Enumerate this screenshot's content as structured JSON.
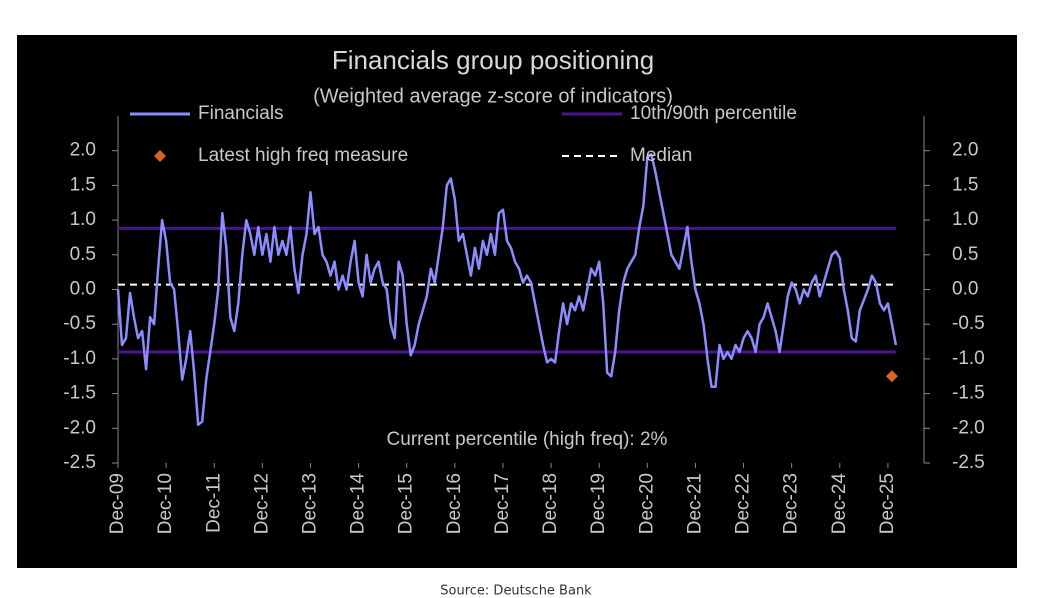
{
  "chart_data": {
    "type": "line",
    "title": "Financials group positioning",
    "subtitle": "(Weighted average z-score of indicators)",
    "annotation": "Current percentile (high freq): 2%",
    "source": "Source: Deutsche Bank",
    "xlim": [
      "2009-12",
      "2026-09"
    ],
    "xticks": [
      {
        "value": "2009-12",
        "label": "Dec-09"
      },
      {
        "value": "2010-12",
        "label": "Dec-10"
      },
      {
        "value": "2011-12",
        "label": "Dec-11"
      },
      {
        "value": "2012-12",
        "label": "Dec-12"
      },
      {
        "value": "2013-12",
        "label": "Dec-13"
      },
      {
        "value": "2014-12",
        "label": "Dec-14"
      },
      {
        "value": "2015-12",
        "label": "Dec-15"
      },
      {
        "value": "2016-12",
        "label": "Dec-16"
      },
      {
        "value": "2017-12",
        "label": "Dec-17"
      },
      {
        "value": "2018-12",
        "label": "Dec-18"
      },
      {
        "value": "2019-12",
        "label": "Dec-19"
      },
      {
        "value": "2020-12",
        "label": "Dec-20"
      },
      {
        "value": "2021-12",
        "label": "Dec-21"
      },
      {
        "value": "2022-12",
        "label": "Dec-22"
      },
      {
        "value": "2023-12",
        "label": "Dec-23"
      },
      {
        "value": "2024-12",
        "label": "Dec-24"
      },
      {
        "value": "2025-12",
        "label": "Dec-25"
      }
    ],
    "ylim": [
      -2.5,
      2.5
    ],
    "yticks": [
      -2.5,
      {
        "value": -2,
        "label": "-2.0"
      },
      -1.5,
      {
        "value": -1,
        "label": "-1.0"
      },
      -0.5,
      {
        "value": 0,
        "label": "0.0"
      },
      0.5,
      {
        "value": 1,
        "label": "1.0"
      },
      1.5,
      {
        "value": 2,
        "label": "2.0"
      }
    ],
    "y2lim": [
      -2.5,
      2.5
    ],
    "y2ticks": [
      -2.5,
      {
        "value": -2,
        "label": "-2.0"
      },
      -1.5,
      {
        "value": -1,
        "label": "-1.0"
      },
      -0.5,
      {
        "value": 0,
        "label": "0.0"
      },
      0.5,
      {
        "value": 1,
        "label": "1.0"
      },
      1.5,
      {
        "value": 2,
        "label": "2.0"
      }
    ],
    "series": [
      {
        "name": "Financials",
        "color": "#8c8cff",
        "x": [
          "2009-12",
          "2010-01",
          "2010-02",
          "2010-03",
          "2010-04",
          "2010-05",
          "2010-06",
          "2010-07",
          "2010-08",
          "2010-09",
          "2010-10",
          "2010-11",
          "2010-12",
          "2011-01",
          "2011-02",
          "2011-03",
          "2011-04",
          "2011-05",
          "2011-06",
          "2011-07",
          "2011-08",
          "2011-09",
          "2011-10",
          "2011-11",
          "2011-12",
          "2012-01",
          "2012-02",
          "2012-03",
          "2012-04",
          "2012-05",
          "2012-06",
          "2012-07",
          "2012-08",
          "2012-09",
          "2012-10",
          "2012-11",
          "2012-12",
          "2013-01",
          "2013-02",
          "2013-03",
          "2013-04",
          "2013-05",
          "2013-06",
          "2013-07",
          "2013-08",
          "2013-09",
          "2013-10",
          "2013-11",
          "2013-12",
          "2014-01",
          "2014-02",
          "2014-03",
          "2014-04",
          "2014-05",
          "2014-06",
          "2014-07",
          "2014-08",
          "2014-09",
          "2014-10",
          "2014-11",
          "2014-12",
          "2015-01",
          "2015-02",
          "2015-03",
          "2015-04",
          "2015-05",
          "2015-06",
          "2015-07",
          "2015-08",
          "2015-09",
          "2015-10",
          "2015-11",
          "2015-12",
          "2016-01",
          "2016-02",
          "2016-03",
          "2016-04",
          "2016-05",
          "2016-06",
          "2016-07",
          "2016-08",
          "2016-09",
          "2016-10",
          "2016-11",
          "2016-12",
          "2017-01",
          "2017-02",
          "2017-03",
          "2017-04",
          "2017-05",
          "2017-06",
          "2017-07",
          "2017-08",
          "2017-09",
          "2017-10",
          "2017-11",
          "2017-12",
          "2018-01",
          "2018-02",
          "2018-03",
          "2018-04",
          "2018-05",
          "2018-06",
          "2018-07",
          "2018-08",
          "2018-09",
          "2018-10",
          "2018-11",
          "2018-12",
          "2019-01",
          "2019-02",
          "2019-03",
          "2019-04",
          "2019-05",
          "2019-06",
          "2019-07",
          "2019-08",
          "2019-09",
          "2019-10",
          "2019-11",
          "2019-12",
          "2020-01",
          "2020-02",
          "2020-03",
          "2020-04",
          "2020-05",
          "2020-06",
          "2020-07",
          "2020-08",
          "2020-09",
          "2020-10",
          "2020-11",
          "2020-12",
          "2021-01",
          "2021-02",
          "2021-03",
          "2021-04",
          "2021-05",
          "2021-06",
          "2021-07",
          "2021-08",
          "2021-09",
          "2021-10",
          "2021-11",
          "2021-12",
          "2022-01",
          "2022-02",
          "2022-03",
          "2022-04",
          "2022-05",
          "2022-06",
          "2022-07",
          "2022-08",
          "2022-09",
          "2022-10",
          "2022-11",
          "2022-12",
          "2023-01",
          "2023-02",
          "2023-03",
          "2023-04",
          "2023-05",
          "2023-06",
          "2023-07",
          "2023-08",
          "2023-09",
          "2023-10",
          "2023-11",
          "2023-12",
          "2024-01",
          "2024-02",
          "2024-03",
          "2024-04",
          "2024-05",
          "2024-06",
          "2024-07",
          "2024-08",
          "2024-09",
          "2024-10",
          "2024-11",
          "2024-12",
          "2025-01",
          "2025-02",
          "2025-03",
          "2025-04",
          "2025-05",
          "2025-06",
          "2025-07",
          "2025-08",
          "2025-09",
          "2025-10",
          "2025-11",
          "2025-12",
          "2026-01",
          "2026-02"
        ],
        "values": [
          0.0,
          -0.8,
          -0.7,
          -0.05,
          -0.4,
          -0.7,
          -0.6,
          -1.15,
          -0.4,
          -0.5,
          0.3,
          1.0,
          0.7,
          0.1,
          0.0,
          -0.6,
          -1.3,
          -1.0,
          -0.6,
          -1.2,
          -1.95,
          -1.9,
          -1.3,
          -0.9,
          -0.5,
          0.0,
          1.1,
          0.6,
          -0.4,
          -0.6,
          -0.2,
          0.5,
          1.0,
          0.8,
          0.5,
          0.9,
          0.5,
          0.8,
          0.4,
          0.9,
          0.5,
          0.7,
          0.5,
          0.9,
          0.3,
          -0.05,
          0.5,
          0.8,
          1.4,
          0.8,
          0.9,
          0.5,
          0.4,
          0.2,
          0.4,
          0.0,
          0.2,
          0.0,
          0.4,
          0.7,
          0.1,
          -0.1,
          0.5,
          0.1,
          0.3,
          0.4,
          0.1,
          0.0,
          -0.5,
          -0.7,
          0.4,
          0.2,
          -0.5,
          -0.95,
          -0.8,
          -0.5,
          -0.3,
          -0.1,
          0.3,
          0.1,
          0.5,
          0.9,
          1.5,
          1.6,
          1.3,
          0.7,
          0.8,
          0.5,
          0.2,
          0.6,
          0.3,
          0.7,
          0.5,
          0.8,
          0.5,
          1.1,
          1.15,
          0.7,
          0.6,
          0.4,
          0.3,
          0.1,
          0.2,
          0.1,
          -0.2,
          -0.5,
          -0.8,
          -1.05,
          -1.0,
          -1.05,
          -0.6,
          -0.2,
          -0.5,
          -0.2,
          -0.3,
          -0.1,
          -0.3,
          0.0,
          0.3,
          0.2,
          0.4,
          -0.2,
          -1.2,
          -1.25,
          -0.9,
          -0.3,
          0.1,
          0.3,
          0.4,
          0.5,
          0.9,
          1.2,
          1.9,
          1.95,
          1.7,
          1.4,
          1.1,
          0.8,
          0.5,
          0.4,
          0.3,
          0.6,
          0.9,
          0.4,
          0.0,
          -0.2,
          -0.5,
          -1.0,
          -1.4,
          -1.4,
          -0.8,
          -1.0,
          -0.9,
          -1.0,
          -0.8,
          -0.9,
          -0.7,
          -0.6,
          -0.7,
          -0.9,
          -0.5,
          -0.4,
          -0.2,
          -0.4,
          -0.6,
          -0.9,
          -0.5,
          -0.1,
          0.1,
          0.0,
          -0.2,
          0.0,
          -0.1,
          0.1,
          0.2,
          -0.1,
          0.1,
          0.3,
          0.5,
          0.55,
          0.45,
          0.0,
          -0.3,
          -0.7,
          -0.75,
          -0.3,
          -0.15,
          0.0,
          0.2,
          0.1,
          -0.2,
          -0.3,
          -0.2,
          -0.5,
          -0.8
        ]
      }
    ],
    "percentile_lines": {
      "name": "10th/90th percentile",
      "color": "#4e1490",
      "values": [
        0.88,
        -0.9
      ]
    },
    "median_line": {
      "name": "Median",
      "color": "#ffffff",
      "value": 0.07
    },
    "latest": {
      "name": "Latest high freq measure",
      "color": "#d9661c",
      "x": "2026-01",
      "value": -1.25
    }
  }
}
